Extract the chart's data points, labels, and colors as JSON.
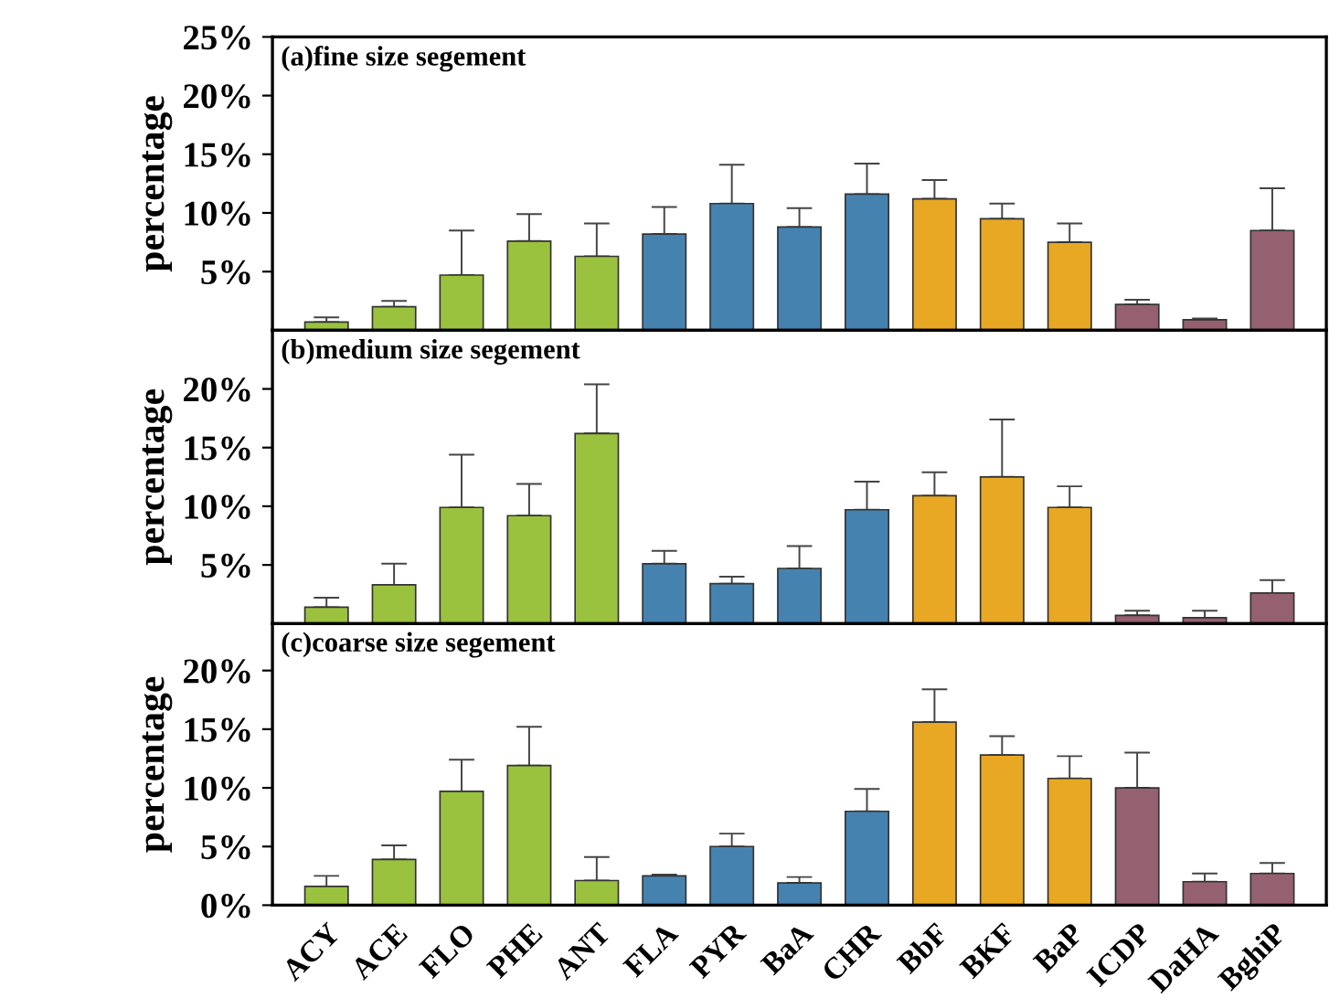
{
  "chart_data": [
    {
      "type": "bar",
      "title": "(a)fine size segement",
      "ylabel": "percentage",
      "tick_labels": "y",
      "categories": [
        null,
        null,
        null,
        null,
        null,
        null,
        null,
        null,
        null,
        null,
        null,
        null,
        null,
        null,
        null
      ],
      "colors": [
        "#9ac23f",
        "#9ac23f",
        "#9ac23f",
        "#9ac23f",
        "#9ac23f",
        "#4682b0",
        "#4682b0",
        "#4682b0",
        "#4682b0",
        "#e8a824",
        "#e8a824",
        "#e8a824",
        "#956070",
        "#956070",
        "#956070"
      ],
      "values": [
        0.7,
        2.0,
        4.7,
        7.6,
        6.3,
        8.2,
        10.8,
        8.8,
        11.6,
        11.2,
        9.5,
        7.5,
        2.2,
        0.9,
        8.5
      ],
      "errors": [
        [
          0.7,
          1.1
        ],
        [
          2.0,
          2.5
        ],
        [
          4.7,
          8.5
        ],
        [
          7.6,
          9.9
        ],
        [
          6.3,
          9.1
        ],
        [
          8.2,
          10.5
        ],
        [
          10.8,
          14.1
        ],
        [
          8.8,
          10.4
        ],
        [
          11.6,
          14.2
        ],
        [
          11.2,
          12.8
        ],
        [
          9.5,
          10.8
        ],
        [
          7.5,
          9.1
        ],
        [
          2.2,
          2.6
        ],
        [
          0.9,
          1.0
        ],
        [
          8.5,
          12.1
        ]
      ],
      "ylim": [
        0,
        25
      ],
      "yticks": [
        {
          "value": 5,
          "label": "5%"
        },
        {
          "value": 10,
          "label": "10%"
        },
        {
          "value": 15,
          "label": "15%"
        },
        {
          "value": 20,
          "label": "20%"
        },
        {
          "value": 25,
          "label": "25%"
        }
      ]
    },
    {
      "type": "bar",
      "title": "(b)medium size segement",
      "ylabel": "percentage",
      "tick_labels": "y",
      "categories": [
        null,
        null,
        null,
        null,
        null,
        null,
        null,
        null,
        null,
        null,
        null,
        null,
        null,
        null,
        null
      ],
      "colors": [
        "#9ac23f",
        "#9ac23f",
        "#9ac23f",
        "#9ac23f",
        "#9ac23f",
        "#4682b0",
        "#4682b0",
        "#4682b0",
        "#4682b0",
        "#e8a824",
        "#e8a824",
        "#e8a824",
        "#956070",
        "#956070",
        "#956070"
      ],
      "values": [
        1.4,
        3.3,
        9.9,
        9.2,
        16.2,
        5.1,
        3.4,
        4.7,
        9.7,
        10.9,
        12.5,
        9.9,
        0.7,
        0.5,
        2.6
      ],
      "errors": [
        [
          1.4,
          2.2
        ],
        [
          3.3,
          5.1
        ],
        [
          9.9,
          14.4
        ],
        [
          9.2,
          11.9
        ],
        [
          16.2,
          20.4
        ],
        [
          5.1,
          6.2
        ],
        [
          3.4,
          4.0
        ],
        [
          4.7,
          6.6
        ],
        [
          9.7,
          12.1
        ],
        [
          10.9,
          12.9
        ],
        [
          12.5,
          17.4
        ],
        [
          9.9,
          11.7
        ],
        [
          0.7,
          1.1
        ],
        [
          0.5,
          1.1
        ],
        [
          2.6,
          3.7
        ]
      ],
      "ylim": [
        0,
        25
      ],
      "yticks": [
        {
          "value": 5,
          "label": "5%"
        },
        {
          "value": 10,
          "label": "10%"
        },
        {
          "value": 15,
          "label": "15%"
        },
        {
          "value": 20,
          "label": "20%"
        }
      ]
    },
    {
      "type": "bar",
      "title": "(c)coarse size segement",
      "ylabel": "percentage",
      "categories": [
        "ACY",
        "ACE",
        "FLO",
        "PHE",
        "ANT",
        "FLA",
        "PYR",
        "BaA",
        "CHR",
        "BbF",
        "BKF",
        "BaP",
        "ICDP",
        "DaHA",
        "BghiP"
      ],
      "colors": [
        "#9ac23f",
        "#9ac23f",
        "#9ac23f",
        "#9ac23f",
        "#9ac23f",
        "#4682b0",
        "#4682b0",
        "#4682b0",
        "#4682b0",
        "#e8a824",
        "#e8a824",
        "#e8a824",
        "#956070",
        "#956070",
        "#956070"
      ],
      "values": [
        1.6,
        3.9,
        9.7,
        11.9,
        2.1,
        2.5,
        5.0,
        1.9,
        8.0,
        15.6,
        12.8,
        10.8,
        10.0,
        2.0,
        2.7
      ],
      "errors": [
        [
          1.6,
          2.5
        ],
        [
          3.9,
          5.1
        ],
        [
          9.7,
          12.4
        ],
        [
          11.9,
          15.2
        ],
        [
          2.1,
          4.1
        ],
        [
          2.5,
          2.6
        ],
        [
          5.0,
          6.1
        ],
        [
          1.9,
          2.4
        ],
        [
          8.0,
          9.9
        ],
        [
          15.6,
          18.4
        ],
        [
          12.8,
          14.4
        ],
        [
          10.8,
          12.7
        ],
        [
          10.0,
          13.0
        ],
        [
          2.0,
          2.7
        ],
        [
          2.7,
          3.6
        ]
      ],
      "ylim": [
        0,
        24
      ],
      "yticks": [
        {
          "value": 0,
          "label": "0%"
        },
        {
          "value": 5,
          "label": "5%"
        },
        {
          "value": 10,
          "label": "10%"
        },
        {
          "value": 15,
          "label": "15%"
        },
        {
          "value": 20,
          "label": "20%"
        }
      ]
    }
  ]
}
